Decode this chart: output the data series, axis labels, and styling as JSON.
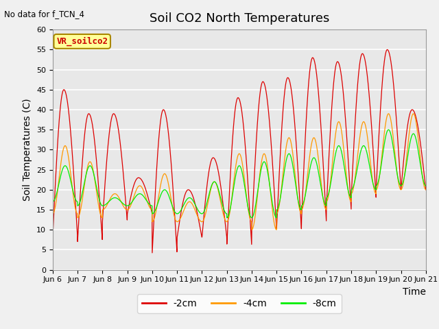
{
  "title": "Soil CO2 North Temperatures",
  "ylabel": "Soil Temperatures (C)",
  "xlabel": "Time",
  "annotation": "No data for f_TCN_4",
  "box_label": "VR_soilco2",
  "legend_labels": [
    "-2cm",
    "-4cm",
    "-8cm"
  ],
  "legend_colors": [
    "#dd0000",
    "#ff9900",
    "#00ee00"
  ],
  "line_colors": [
    "#dd0000",
    "#ff9900",
    "#00ee00"
  ],
  "ylim": [
    0,
    60
  ],
  "yticks": [
    0,
    5,
    10,
    15,
    20,
    25,
    30,
    35,
    40,
    45,
    50,
    55,
    60
  ],
  "xtick_labels": [
    "Jun 6",
    "Jun 7",
    "Jun 8",
    "Jun 9",
    "Jun 10",
    "Jun 11",
    "Jun 12",
    "Jun 13",
    "Jun 14",
    "Jun 15",
    "Jun 16",
    "Jun 17",
    "Jun 18",
    "Jun 19",
    "Jun 20",
    "Jun 21"
  ],
  "axes_facecolor": "#e8e8e8",
  "fig_facecolor": "#f0f0f0",
  "grid_color": "#ffffff",
  "title_fontsize": 13,
  "label_fontsize": 10,
  "tick_fontsize": 8
}
